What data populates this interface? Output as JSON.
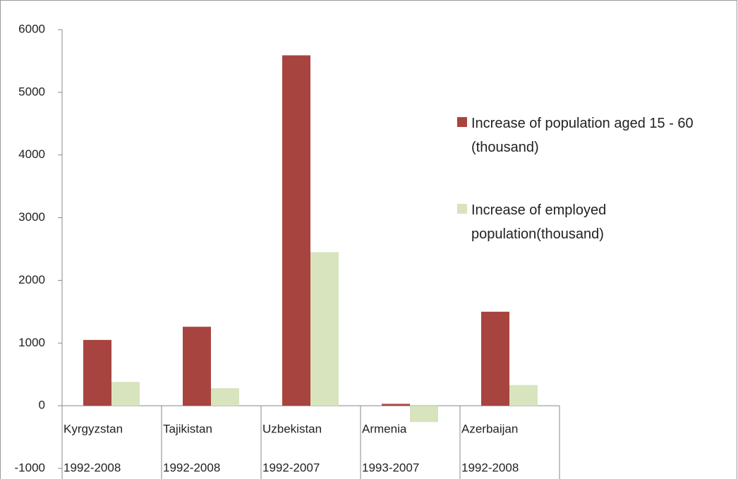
{
  "chart_data": {
    "type": "bar",
    "categories": [
      "Kyrgyzstan",
      "Tajikistan",
      "Uzbekistan",
      "Armenia",
      "Azerbaijan"
    ],
    "category_periods": [
      "1992-2008",
      "1992-2008",
      "1992-2007",
      "1993-2007",
      "1992-2008"
    ],
    "series": [
      {
        "name": "Increase of population aged  15 - 60  (thousand)",
        "color": "#a8443f",
        "values": [
          1050,
          1260,
          5590,
          30,
          1500
        ]
      },
      {
        "name": "Increase of employed population(thousand)",
        "color": "#d7e4bd",
        "values": [
          380,
          280,
          2450,
          -260,
          330
        ]
      }
    ],
    "ylim": [
      -1000,
      6000
    ],
    "yticks": [
      -1000,
      0,
      1000,
      2000,
      3000,
      4000,
      5000,
      6000
    ],
    "grid": false,
    "legend": "right"
  }
}
